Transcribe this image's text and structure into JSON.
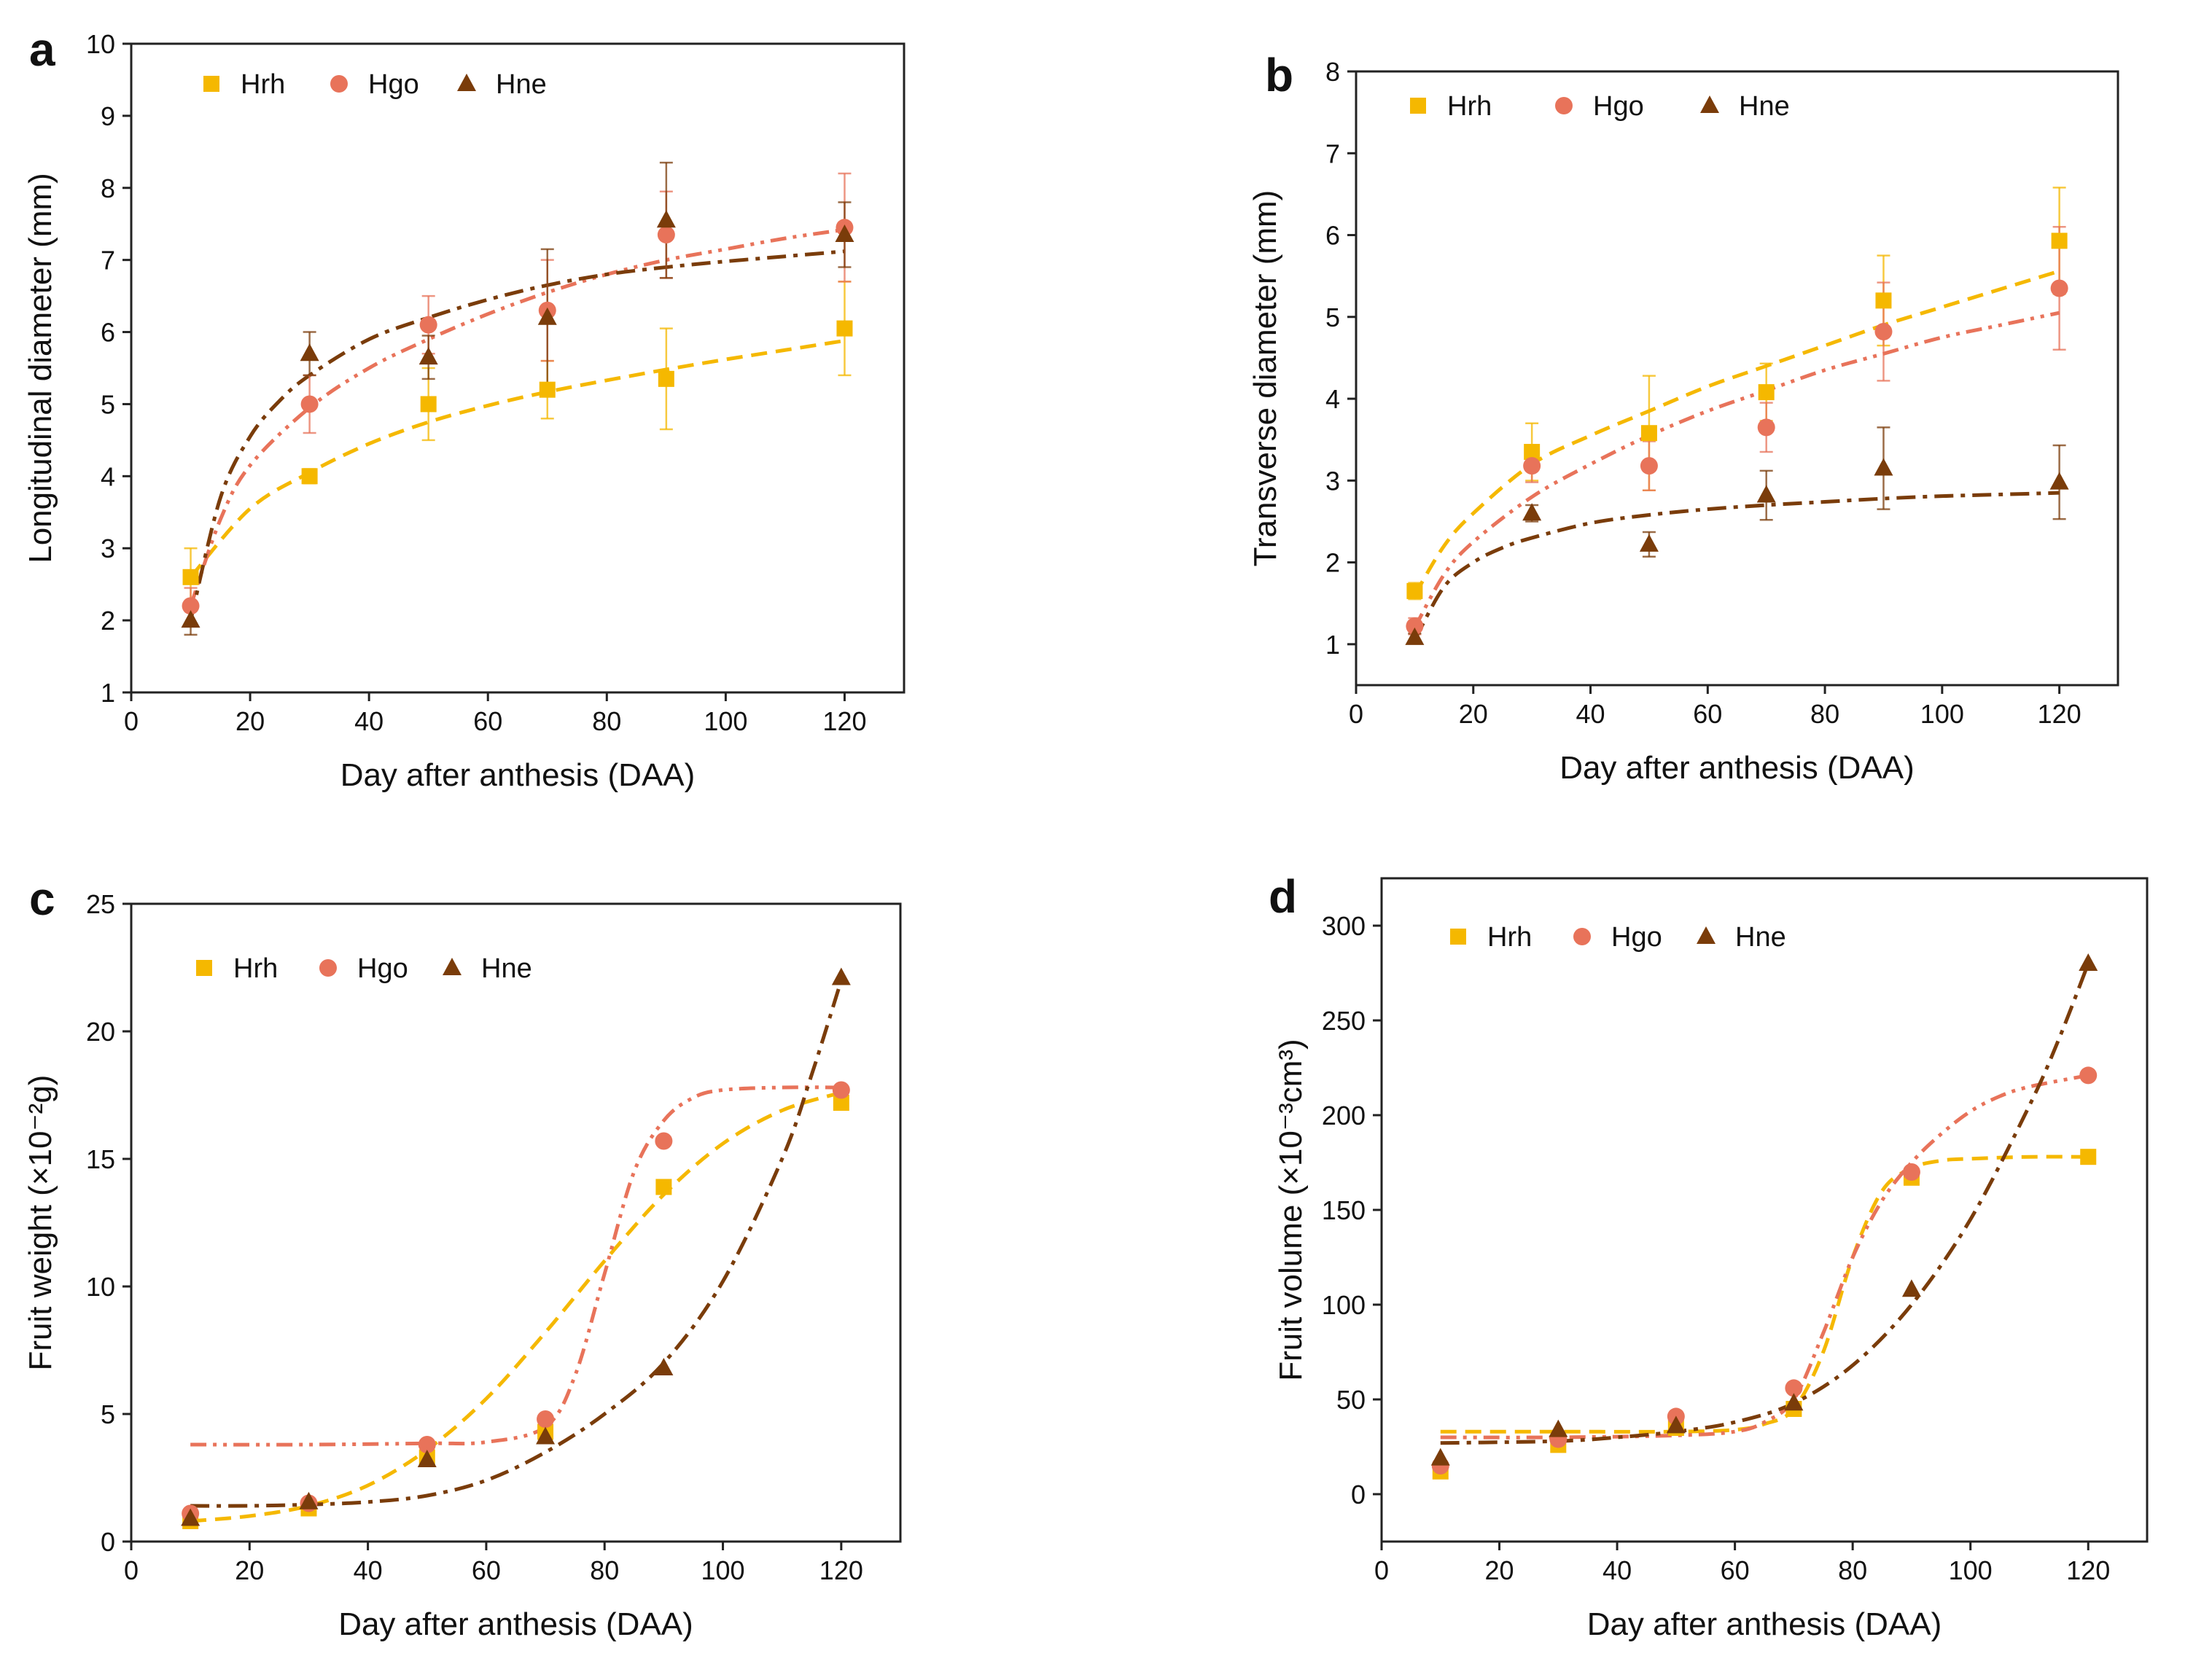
{
  "figure": {
    "colors": {
      "Hrh": "#F5B800",
      "Hgo": "#E8735A",
      "Hne": "#7A3C0A"
    },
    "markers": {
      "Hrh": "square",
      "Hgo": "circle",
      "Hne": "triangle"
    },
    "legend_labels": [
      "Hrh",
      "Hgo",
      "Hne"
    ]
  },
  "chart_data": [
    {
      "panel": "a",
      "type": "scatter",
      "xlabel": "Day after anthesis (DAA)",
      "ylabel": "Longitudinal diameter (mm)",
      "xlim": [
        0,
        130
      ],
      "ylim": [
        1,
        10
      ],
      "xticks": [
        0,
        20,
        40,
        60,
        80,
        100,
        120
      ],
      "yticks": [
        1,
        2,
        3,
        4,
        5,
        6,
        7,
        8,
        9,
        10
      ],
      "ytick_labels": [
        "1",
        "2",
        "3",
        "4",
        "5",
        "6",
        "7",
        "8",
        "9",
        "10"
      ],
      "x": [
        10,
        30,
        50,
        70,
        90,
        120
      ],
      "series": [
        {
          "name": "Hrh",
          "values": [
            2.6,
            4.0,
            5.0,
            5.2,
            5.35,
            6.05
          ],
          "err": [
            0.4,
            0.1,
            0.5,
            0.4,
            0.7,
            0.65
          ],
          "fit_x": [
            10,
            20,
            30,
            40,
            50,
            60,
            70,
            80,
            90,
            100,
            110,
            120
          ],
          "fit_y": [
            2.6,
            3.55,
            4.05,
            4.45,
            4.75,
            4.98,
            5.17,
            5.33,
            5.48,
            5.62,
            5.75,
            5.88
          ]
        },
        {
          "name": "Hgo",
          "values": [
            2.2,
            5.0,
            6.1,
            6.3,
            7.35,
            7.45
          ],
          "err": [
            0.25,
            0.4,
            0.4,
            0.7,
            0.6,
            0.75
          ],
          "fit_x": [
            10,
            15,
            20,
            30,
            40,
            50,
            60,
            70,
            80,
            90,
            100,
            110,
            120
          ],
          "fit_y": [
            2.2,
            3.4,
            4.15,
            4.95,
            5.5,
            5.9,
            6.25,
            6.55,
            6.8,
            7.0,
            7.15,
            7.3,
            7.42
          ]
        },
        {
          "name": "Hne",
          "values": [
            2.0,
            5.7,
            5.65,
            6.2,
            7.55,
            7.35
          ],
          "err": [
            0.2,
            0.3,
            0.3,
            0.95,
            0.8,
            0.45
          ],
          "fit_x": [
            10,
            15,
            20,
            25,
            30,
            40,
            50,
            60,
            70,
            80,
            90,
            100,
            110,
            120
          ],
          "fit_y": [
            2.0,
            3.7,
            4.55,
            5.05,
            5.4,
            5.9,
            6.2,
            6.45,
            6.65,
            6.8,
            6.9,
            6.98,
            7.05,
            7.12
          ]
        }
      ]
    },
    {
      "panel": "b",
      "type": "scatter",
      "xlabel": "Day after anthesis (DAA)",
      "ylabel": "Transverse diameter (mm)",
      "xlim": [
        0,
        130
      ],
      "ylim": [
        0.5,
        8
      ],
      "xticks": [
        0,
        20,
        40,
        60,
        80,
        100,
        120
      ],
      "yticks": [
        1,
        2,
        3,
        4,
        5,
        6,
        7,
        8
      ],
      "ytick_labels": [
        "1",
        "2",
        "3",
        "4",
        "5",
        "6",
        "7",
        "8"
      ],
      "x": [
        10,
        30,
        50,
        70,
        90,
        120
      ],
      "series": [
        {
          "name": "Hrh",
          "values": [
            1.65,
            3.35,
            3.58,
            4.08,
            5.2,
            5.93
          ],
          "err": [
            0.1,
            0.35,
            0.7,
            0.35,
            0.55,
            0.65
          ],
          "fit_x": [
            10,
            15,
            20,
            30,
            40,
            50,
            60,
            70,
            80,
            90,
            100,
            110,
            120
          ],
          "fit_y": [
            1.6,
            2.2,
            2.6,
            3.2,
            3.55,
            3.85,
            4.15,
            4.4,
            4.65,
            4.9,
            5.12,
            5.34,
            5.56
          ]
        },
        {
          "name": "Hgo",
          "values": [
            1.22,
            3.18,
            3.18,
            3.65,
            4.82,
            5.35
          ],
          "err": [
            0.1,
            0.2,
            0.3,
            0.3,
            0.6,
            0.75
          ],
          "fit_x": [
            10,
            15,
            20,
            30,
            40,
            50,
            60,
            70,
            80,
            90,
            100,
            110,
            120
          ],
          "fit_y": [
            1.2,
            1.85,
            2.25,
            2.8,
            3.2,
            3.55,
            3.85,
            4.1,
            4.35,
            4.55,
            4.75,
            4.9,
            5.05
          ]
        },
        {
          "name": "Hne",
          "values": [
            1.08,
            2.6,
            2.22,
            2.82,
            3.15,
            2.98
          ],
          "err": [
            0.05,
            0.1,
            0.15,
            0.3,
            0.5,
            0.45
          ],
          "fit_x": [
            10,
            15,
            20,
            25,
            30,
            40,
            50,
            60,
            70,
            80,
            90,
            100,
            110,
            120
          ],
          "fit_y": [
            1.05,
            1.7,
            2.0,
            2.18,
            2.3,
            2.48,
            2.58,
            2.65,
            2.7,
            2.74,
            2.78,
            2.81,
            2.83,
            2.85
          ]
        }
      ]
    },
    {
      "panel": "c",
      "type": "scatter",
      "xlabel": "Day after anthesis (DAA)",
      "ylabel": "Fruit weight (×10⁻²g)",
      "xlim": [
        0,
        130
      ],
      "ylim": [
        0,
        25
      ],
      "xticks": [
        0,
        20,
        40,
        60,
        80,
        100,
        120
      ],
      "yticks": [
        0,
        5,
        10,
        15,
        20,
        25
      ],
      "ytick_labels": [
        "0",
        "5",
        "10",
        "15",
        "20",
        "25"
      ],
      "x": [
        10,
        30,
        50,
        70,
        90,
        120
      ],
      "series": [
        {
          "name": "Hrh",
          "values": [
            0.8,
            1.3,
            3.3,
            4.3,
            13.9,
            17.2
          ],
          "err": [
            0,
            0,
            0,
            0,
            0,
            0
          ],
          "fit_x": [
            10,
            20,
            30,
            40,
            50,
            60,
            70,
            80,
            90,
            100,
            110,
            120
          ],
          "fit_y": [
            0.8,
            1.0,
            1.4,
            2.2,
            3.6,
            5.6,
            8.2,
            11.0,
            13.6,
            15.6,
            16.9,
            17.6
          ]
        },
        {
          "name": "Hgo",
          "values": [
            1.1,
            1.5,
            3.8,
            4.8,
            15.7,
            17.7
          ],
          "err": [
            0,
            0,
            0,
            0,
            0,
            0
          ],
          "fit_x": [
            10,
            30,
            50,
            60,
            70,
            75,
            80,
            85,
            90,
            95,
            100,
            110,
            120
          ],
          "fit_y": [
            3.8,
            3.8,
            3.85,
            3.9,
            4.5,
            6.5,
            10.5,
            14.5,
            16.5,
            17.4,
            17.7,
            17.8,
            17.8
          ]
        },
        {
          "name": "Hne",
          "values": [
            0.9,
            1.55,
            3.2,
            4.1,
            6.8,
            22.1
          ],
          "err": [
            0,
            0,
            0,
            0,
            0,
            0
          ],
          "fit_x": [
            10,
            20,
            30,
            40,
            50,
            60,
            70,
            80,
            90,
            100,
            110,
            115,
            120
          ],
          "fit_y": [
            1.4,
            1.4,
            1.45,
            1.55,
            1.8,
            2.4,
            3.5,
            5.0,
            7.0,
            10.2,
            15.0,
            18.3,
            22.0
          ]
        }
      ]
    },
    {
      "panel": "d",
      "type": "scatter",
      "xlabel": "Day after anthesis (DAA)",
      "ylabel": "Fruit volume (×10⁻³cm³)",
      "xlim": [
        0,
        130
      ],
      "ylim": [
        -25,
        325
      ],
      "xticks": [
        0,
        20,
        40,
        60,
        80,
        100,
        120
      ],
      "yticks": [
        0,
        50,
        100,
        150,
        200,
        250,
        300
      ],
      "ytick_labels": [
        "0",
        "50",
        "100",
        "150",
        "200",
        "250",
        "300"
      ],
      "x": [
        10,
        30,
        50,
        70,
        90,
        120
      ],
      "series": [
        {
          "name": "Hrh",
          "values": [
            12,
            26,
            35,
            45,
            167,
            178
          ],
          "err": [
            0,
            0,
            0,
            0,
            0,
            0
          ],
          "fit_x": [
            10,
            30,
            50,
            60,
            65,
            70,
            75,
            80,
            85,
            90,
            95,
            100,
            110,
            120
          ],
          "fit_y": [
            33,
            33,
            33,
            34,
            37,
            45,
            75,
            125,
            160,
            172,
            176,
            177,
            178,
            178
          ]
        },
        {
          "name": "Hgo",
          "values": [
            15,
            29,
            41,
            56,
            170,
            221
          ],
          "err": [
            0,
            0,
            0,
            0,
            0,
            0
          ],
          "fit_x": [
            10,
            30,
            50,
            60,
            65,
            70,
            75,
            80,
            85,
            90,
            95,
            100,
            105,
            110,
            120
          ],
          "fit_y": [
            30,
            30,
            31,
            33,
            38,
            50,
            85,
            125,
            155,
            175,
            190,
            202,
            210,
            215,
            221
          ]
        },
        {
          "name": "Hne",
          "values": [
            19,
            34,
            36,
            48,
            108,
            280
          ],
          "err": [
            0,
            0,
            0,
            0,
            0,
            0
          ],
          "fit_x": [
            10,
            30,
            40,
            50,
            60,
            70,
            80,
            90,
            100,
            110,
            115,
            120
          ],
          "fit_y": [
            27,
            28,
            30,
            33,
            38,
            48,
            68,
            100,
            145,
            205,
            240,
            280
          ]
        }
      ]
    }
  ]
}
